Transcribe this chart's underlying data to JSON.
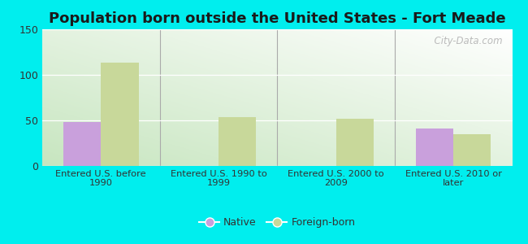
{
  "title": "Population born outside the United States - Fort Meade",
  "categories": [
    "Entered U.S. before\n1990",
    "Entered U.S. 1990 to\n1999",
    "Entered U.S. 2000 to\n2009",
    "Entered U.S. 2010 or\nlater"
  ],
  "native_values": [
    48,
    0,
    0,
    41
  ],
  "foreign_values": [
    113,
    54,
    52,
    35
  ],
  "native_color": "#c9a0dc",
  "foreign_color": "#c8d89a",
  "ylim": [
    0,
    150
  ],
  "yticks": [
    0,
    50,
    100,
    150
  ],
  "bar_width": 0.32,
  "bg_color_left": "#c8e6c0",
  "bg_color_right": "#f0f8f0",
  "outer_bg": "#00eeee",
  "watermark": "  City-Data.com",
  "legend_native_label": "Native",
  "legend_foreign_label": "Foreign-born",
  "title_fontsize": 13,
  "separator_color": "#aaaaaa",
  "grid_color": "#ffffff",
  "tick_label_color": "#333333",
  "tick_label_fontsize": 8.2
}
